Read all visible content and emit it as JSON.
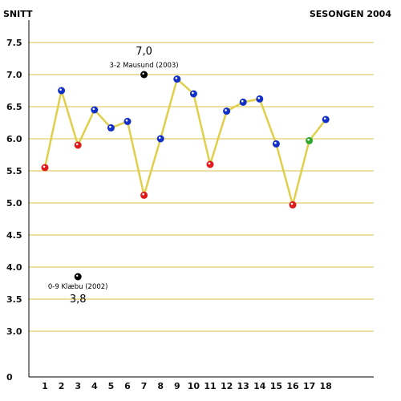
{
  "header": {
    "left": "SNITT",
    "right": "SESONGEN 2004"
  },
  "colors": {
    "line": "#e0cf4a",
    "grid": "#d9c24a",
    "axis": "#000000",
    "marker_blue": "#1230c8",
    "marker_red": "#e01a1a",
    "marker_green": "#2fa82f",
    "marker_white": "#ffffff",
    "marker_black": "#000000"
  },
  "chart_data": {
    "type": "line",
    "title": "",
    "xlabel": "",
    "ylabel": "SNITT",
    "ylim": [
      2.5,
      7.8
    ],
    "y_axis_break": {
      "label": "0"
    },
    "y_ticks": [
      3.0,
      3.5,
      4.0,
      4.5,
      5.0,
      5.5,
      6.0,
      6.5,
      7.0,
      7.5
    ],
    "y_tick_labels": [
      "3.0",
      "3.5",
      "4.0",
      "4.5",
      "5.0",
      "5.5",
      "6.0",
      "6.5",
      "7.0",
      "7.5"
    ],
    "grid": true,
    "categories": [
      "1",
      "2",
      "3",
      "4",
      "5",
      "6",
      "7",
      "8",
      "9",
      "10",
      "11",
      "12",
      "13",
      "14",
      "15",
      "16",
      "17",
      "18"
    ],
    "series": [
      {
        "values": [
          5.55,
          6.75,
          5.9,
          6.45,
          6.17,
          6.27,
          5.12,
          6.0,
          6.93,
          6.7,
          5.6,
          6.43,
          6.57,
          6.62,
          5.92,
          4.97,
          5.97,
          6.3
        ],
        "marker_colors": [
          "red",
          "blue",
          "red",
          "blue",
          "blue",
          "blue",
          "red",
          "blue",
          "blue",
          "blue",
          "red",
          "blue",
          "blue",
          "blue",
          "blue",
          "red",
          "green",
          "blue"
        ]
      }
    ],
    "annotations": [
      {
        "x": 7,
        "y": 7.0,
        "label": "3-2 Mausund (2003)",
        "value_label": "7,0",
        "color": "black"
      },
      {
        "x": 3,
        "y": 3.85,
        "label": "0-9 Klæbu (2002)",
        "value_label": "3,8",
        "color": "black"
      }
    ]
  }
}
